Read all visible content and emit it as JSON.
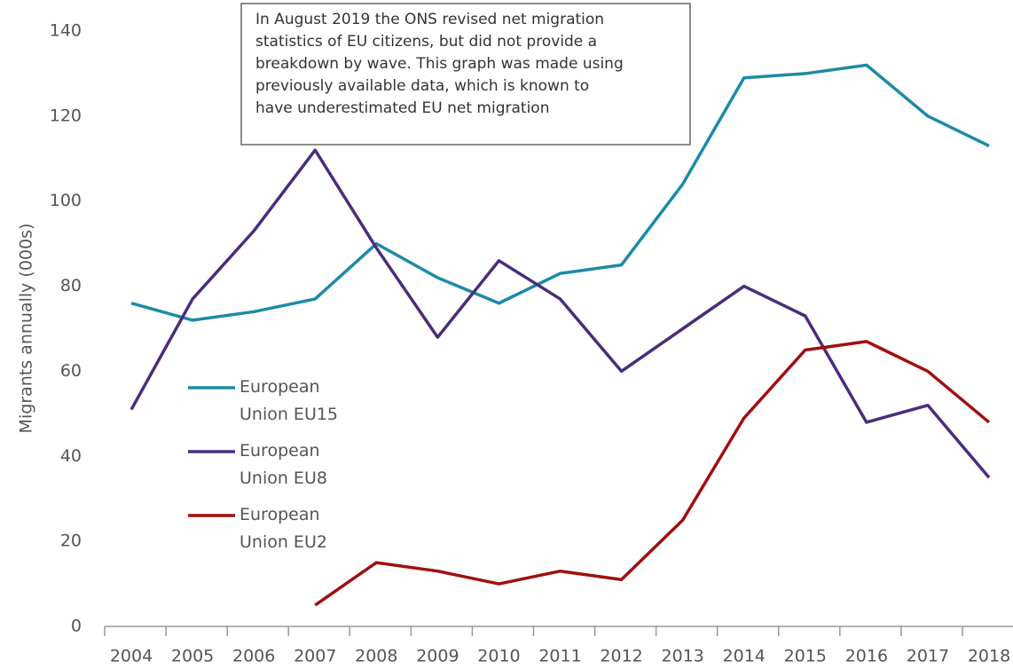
{
  "chart_data": {
    "type": "line",
    "y_label": "Migrants annually (000s)",
    "annotation": [
      "In August 2019 the ONS revised net migration",
      "statistics of EU citizens, but did not provide a",
      "breakdown by wave. This graph was made using",
      "previously available data, which is known to",
      "have underestimated EU net migration"
    ],
    "categories": [
      "2004",
      "2005",
      "2006",
      "2007",
      "2008",
      "2009",
      "2010",
      "2011",
      "2012",
      "2013",
      "2014",
      "2015",
      "2016",
      "2017",
      "2018"
    ],
    "series": [
      {
        "name": "European Union EU15",
        "color": "#1d8aa6",
        "values": [
          76,
          72,
          74,
          77,
          90,
          82,
          76,
          83,
          85,
          104,
          129,
          130,
          132,
          120,
          113
        ]
      },
      {
        "name": "European Union EU8",
        "color": "#4a2c7c",
        "values": [
          51,
          77,
          93,
          112,
          89,
          68,
          86,
          77,
          60,
          70,
          80,
          73,
          48,
          52,
          35
        ]
      },
      {
        "name": "European Union EU2",
        "color": "#a00f0f",
        "values": [
          null,
          null,
          null,
          5,
          15,
          13,
          10,
          13,
          11,
          25,
          49,
          65,
          67,
          60,
          48
        ]
      }
    ],
    "ylim": [
      0,
      140
    ],
    "yticks": [
      0,
      20,
      40,
      60,
      80,
      100,
      120,
      140
    ],
    "grid": false
  }
}
